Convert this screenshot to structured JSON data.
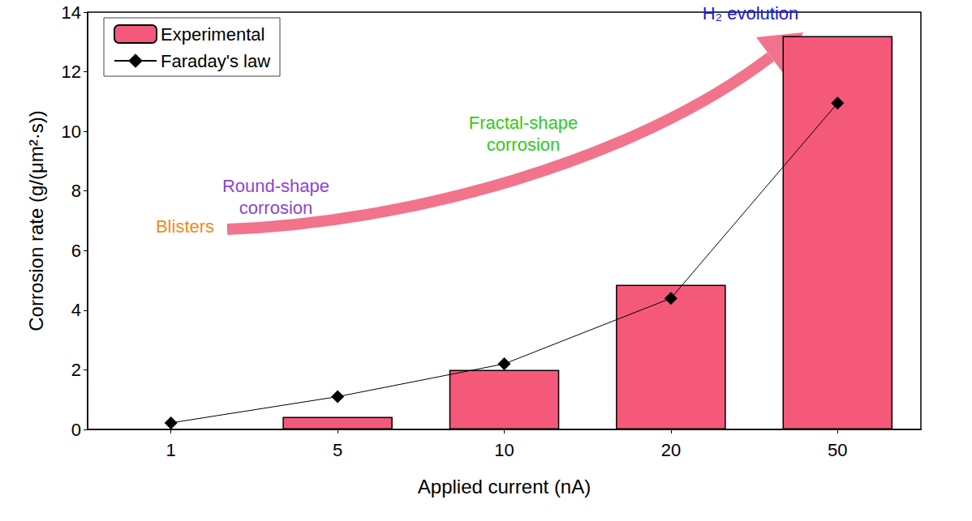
{
  "chart_data": {
    "type": "bar",
    "categories": [
      "1",
      "5",
      "10",
      "20",
      "50"
    ],
    "x_label": "Applied current (nA)",
    "y_label": "Corrosion rate (g/(μm²·s))",
    "series": [
      {
        "name": "Experimental",
        "type": "bar",
        "color": "#f5597a",
        "values": [
          null,
          0.42,
          2.0,
          4.85,
          13.2
        ]
      },
      {
        "name": "Faraday's law",
        "type": "line",
        "color": "#000000",
        "marker": "diamond",
        "values": [
          0.22,
          1.1,
          2.2,
          4.4,
          10.95
        ]
      }
    ],
    "ylim": [
      0,
      14
    ],
    "yticks": [
      0,
      2,
      4,
      6,
      8,
      10,
      12,
      14
    ],
    "grid": false,
    "legend": "upper left",
    "annotations": [
      {
        "text": "Blisters",
        "color": "#f08a24"
      },
      {
        "text": "Round-shape corrosion",
        "color": "#8a46d6"
      },
      {
        "text": "Fractal-shape corrosion",
        "color": "#2ecc1a"
      },
      {
        "text": "H₂ evolution",
        "color": "#1a1adb"
      }
    ]
  }
}
